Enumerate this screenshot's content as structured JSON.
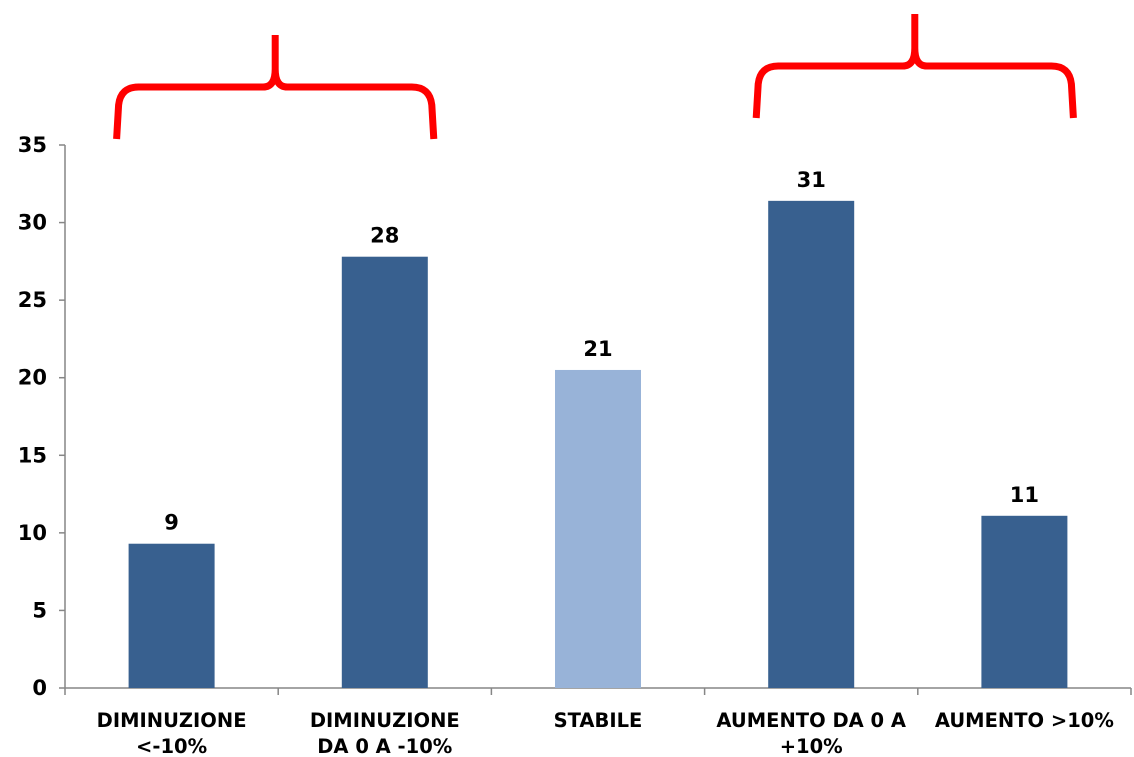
{
  "chart_data": {
    "type": "bar",
    "title": "",
    "xlabel": "",
    "ylabel": "",
    "ylim": [
      0,
      35
    ],
    "yticks": [
      0,
      5,
      10,
      15,
      20,
      25,
      30,
      35
    ],
    "grid": false,
    "legend": "none",
    "categories": [
      [
        "DIMINUZIONE",
        "<-10%"
      ],
      [
        "DIMINUZIONE",
        "DA 0 A -10%"
      ],
      [
        "STABILE"
      ],
      [
        "AUMENTO DA 0 A",
        "+10%"
      ],
      [
        "AUMENTO >10%"
      ]
    ],
    "values": [
      9.3,
      27.8,
      20.5,
      31.4,
      11.1
    ],
    "data_labels": [
      "9",
      "28",
      "21",
      "31",
      "11"
    ],
    "bar_colors": [
      "#38608f",
      "#38608f",
      "#98b3d8",
      "#38608f",
      "#38608f"
    ],
    "brackets": [
      {
        "from_category": 0,
        "to_category": 1,
        "color": "#ff0000"
      },
      {
        "from_category": 3,
        "to_category": 4,
        "color": "#ff0000"
      }
    ]
  },
  "colors": {
    "axis": "#868686",
    "bar_dark": "#38608f",
    "bar_light": "#98b3d8",
    "bracket": "#ff0000"
  }
}
